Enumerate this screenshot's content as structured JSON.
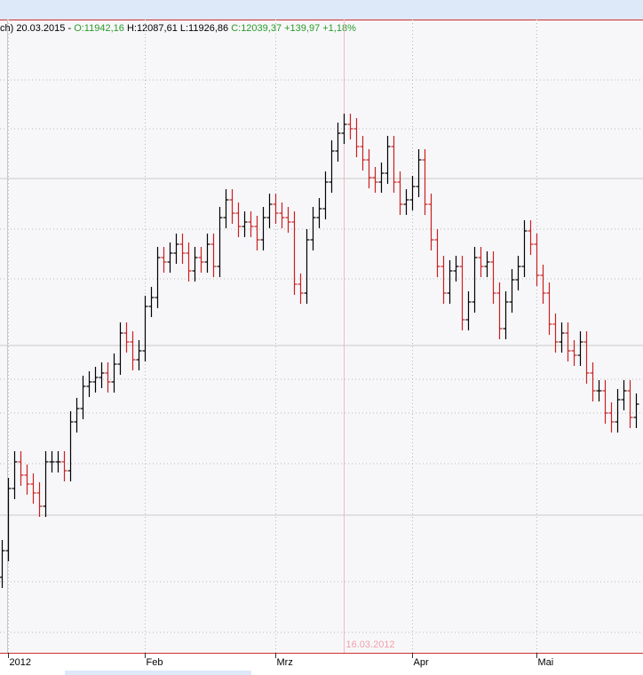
{
  "chart_data": {
    "type": "ohlc",
    "header": {
      "prefix": "ch) 20.03.2015 -",
      "open": "O:11942,16",
      "high_low": "H:12087,61 L:11926,86",
      "close": "C:12039,37 +139,97 +1,18%"
    },
    "crosshair": {
      "index": 55,
      "label": "16.03.2012"
    },
    "up_color": "#000000",
    "down_color": "#cc1f1f",
    "ylim": [
      0,
      713
    ],
    "categories": [
      null,
      "2012",
      null,
      null,
      null,
      null,
      null,
      null,
      null,
      null,
      null,
      null,
      null,
      null,
      null,
      null,
      null,
      null,
      null,
      null,
      null,
      null,
      null,
      "Feb",
      null,
      null,
      null,
      null,
      null,
      null,
      null,
      null,
      null,
      null,
      null,
      null,
      null,
      null,
      null,
      null,
      null,
      null,
      null,
      null,
      "Mrz",
      null,
      null,
      null,
      null,
      null,
      null,
      null,
      null,
      null,
      null,
      null,
      null,
      null,
      null,
      null,
      null,
      null,
      null,
      null,
      null,
      null,
      "Apr",
      null,
      null,
      null,
      null,
      null,
      null,
      null,
      null,
      null,
      null,
      null,
      null,
      null,
      null,
      null,
      null,
      null,
      null,
      null,
      "Mai",
      null,
      null,
      null,
      null,
      null,
      null,
      null,
      null,
      null,
      null,
      null,
      null,
      null,
      null,
      null,
      null
    ],
    "bars": [
      [
        85,
        127,
        73,
        115
      ],
      [
        115,
        197,
        103,
        185
      ],
      [
        185,
        227,
        173,
        215
      ],
      [
        215,
        227,
        188,
        200
      ],
      [
        200,
        212,
        178,
        190
      ],
      [
        190,
        202,
        168,
        180
      ],
      [
        180,
        192,
        153,
        165
      ],
      [
        165,
        227,
        153,
        215
      ],
      [
        215,
        227,
        203,
        215
      ],
      [
        215,
        227,
        203,
        215
      ],
      [
        215,
        227,
        193,
        205
      ],
      [
        205,
        272,
        193,
        260
      ],
      [
        260,
        287,
        248,
        275
      ],
      [
        275,
        312,
        263,
        300
      ],
      [
        300,
        317,
        288,
        305
      ],
      [
        305,
        322,
        293,
        310
      ],
      [
        310,
        327,
        298,
        315
      ],
      [
        315,
        327,
        293,
        305
      ],
      [
        305,
        337,
        293,
        325
      ],
      [
        325,
        372,
        313,
        360
      ],
      [
        360,
        372,
        338,
        350
      ],
      [
        350,
        362,
        318,
        330
      ],
      [
        330,
        352,
        318,
        340
      ],
      [
        340,
        402,
        328,
        390
      ],
      [
        390,
        412,
        378,
        400
      ],
      [
        400,
        457,
        388,
        445
      ],
      [
        445,
        457,
        428,
        440
      ],
      [
        440,
        462,
        428,
        450
      ],
      [
        450,
        472,
        438,
        460
      ],
      [
        460,
        472,
        438,
        450
      ],
      [
        450,
        462,
        418,
        430
      ],
      [
        430,
        457,
        418,
        445
      ],
      [
        445,
        457,
        428,
        440
      ],
      [
        440,
        472,
        428,
        460
      ],
      [
        460,
        472,
        423,
        435
      ],
      [
        435,
        502,
        423,
        490
      ],
      [
        490,
        522,
        478,
        510
      ],
      [
        510,
        522,
        483,
        495
      ],
      [
        495,
        507,
        468,
        480
      ],
      [
        480,
        497,
        468,
        485
      ],
      [
        485,
        497,
        468,
        480
      ],
      [
        480,
        492,
        453,
        465
      ],
      [
        465,
        502,
        453,
        490
      ],
      [
        490,
        517,
        478,
        505
      ],
      [
        505,
        517,
        483,
        495
      ],
      [
        495,
        507,
        478,
        490
      ],
      [
        490,
        502,
        473,
        485
      ],
      [
        485,
        497,
        403,
        415
      ],
      [
        415,
        427,
        393,
        405
      ],
      [
        405,
        477,
        393,
        465
      ],
      [
        465,
        502,
        453,
        490
      ],
      [
        490,
        512,
        478,
        500
      ],
      [
        500,
        542,
        488,
        530
      ],
      [
        530,
        577,
        518,
        565
      ],
      [
        565,
        597,
        553,
        585
      ],
      [
        585,
        607,
        573,
        595
      ],
      [
        595,
        607,
        578,
        590
      ],
      [
        590,
        602,
        558,
        570
      ],
      [
        570,
        582,
        543,
        555
      ],
      [
        555,
        567,
        523,
        535
      ],
      [
        535,
        547,
        518,
        530
      ],
      [
        530,
        552,
        518,
        540
      ],
      [
        540,
        582,
        528,
        570
      ],
      [
        570,
        582,
        518,
        530
      ],
      [
        530,
        542,
        493,
        505
      ],
      [
        505,
        522,
        493,
        510
      ],
      [
        510,
        537,
        498,
        525
      ],
      [
        525,
        567,
        513,
        555
      ],
      [
        555,
        567,
        493,
        505
      ],
      [
        505,
        517,
        453,
        465
      ],
      [
        465,
        477,
        423,
        435
      ],
      [
        435,
        447,
        393,
        405
      ],
      [
        405,
        442,
        393,
        430
      ],
      [
        430,
        447,
        418,
        435
      ],
      [
        435,
        447,
        363,
        375
      ],
      [
        375,
        407,
        363,
        395
      ],
      [
        395,
        457,
        383,
        445
      ],
      [
        445,
        457,
        423,
        435
      ],
      [
        435,
        452,
        423,
        440
      ],
      [
        440,
        452,
        393,
        405
      ],
      [
        405,
        417,
        353,
        365
      ],
      [
        365,
        407,
        353,
        395
      ],
      [
        395,
        432,
        383,
        420
      ],
      [
        420,
        447,
        408,
        435
      ],
      [
        435,
        487,
        423,
        475
      ],
      [
        475,
        487,
        448,
        460
      ],
      [
        460,
        472,
        413,
        425
      ],
      [
        425,
        437,
        393,
        405
      ],
      [
        405,
        417,
        358,
        370
      ],
      [
        370,
        382,
        338,
        350
      ],
      [
        350,
        372,
        338,
        360
      ],
      [
        360,
        372,
        328,
        340
      ],
      [
        340,
        352,
        323,
        335
      ],
      [
        335,
        362,
        323,
        350
      ],
      [
        350,
        362,
        303,
        315
      ],
      [
        315,
        327,
        283,
        295
      ],
      [
        295,
        307,
        283,
        295
      ],
      [
        295,
        307,
        258,
        270
      ],
      [
        270,
        282,
        248,
        260
      ],
      [
        260,
        297,
        248,
        285
      ],
      [
        285,
        307,
        273,
        295
      ],
      [
        295,
        307,
        253,
        265
      ],
      [
        265,
        292,
        253,
        280
      ]
    ]
  }
}
